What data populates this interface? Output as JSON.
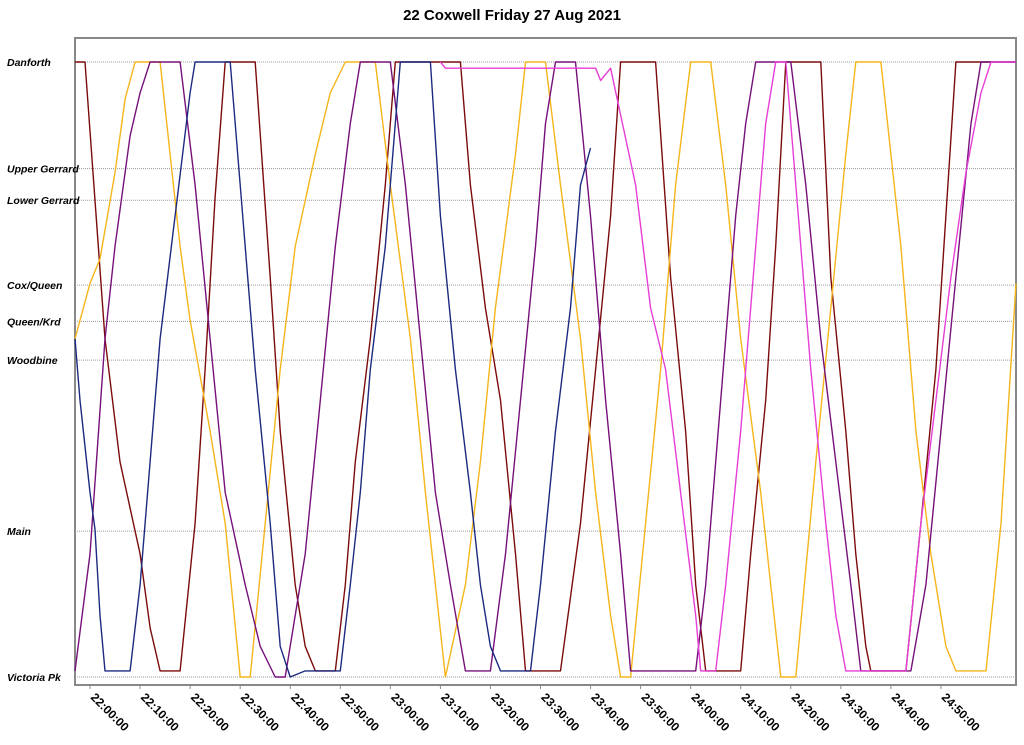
{
  "title": "22 Coxwell Friday 27 Aug 2021",
  "chart_data": {
    "type": "line",
    "title": "22 Coxwell Friday 27 Aug 2021",
    "xlabel": "",
    "ylabel": "",
    "x_range": [
      "21:57:00",
      "25:05:00"
    ],
    "x_ticks": [
      "22:00:00",
      "22:10:00",
      "22:20:00",
      "22:30:00",
      "22:40:00",
      "22:50:00",
      "23:00:00",
      "23:10:00",
      "23:20:00",
      "23:30:00",
      "23:40:00",
      "23:50:00",
      "24:00:00",
      "24:10:00",
      "24:20:00",
      "24:30:00",
      "24:40:00",
      "24:50:00"
    ],
    "stops": [
      {
        "name": "Danforth",
        "pos": 0.0
      },
      {
        "name": "Upper Gerrard",
        "pos": 0.1733
      },
      {
        "name": "Lower Gerrard",
        "pos": 0.2247
      },
      {
        "name": "Cox/Queen",
        "pos": 0.3628
      },
      {
        "name": "Queen/Krd",
        "pos": 0.4218
      },
      {
        "name": "Woodbine",
        "pos": 0.4847
      },
      {
        "name": "Main",
        "pos": 0.7628
      },
      {
        "name": "Victoria Pk",
        "pos": 1.0
      }
    ],
    "grid": true,
    "legend": "none",
    "series": [
      {
        "color": "#7b0b0b",
        "points": [
          [
            "21:57:00",
            0.0
          ],
          [
            "21:59:00",
            0.0
          ],
          [
            "22:03:00",
            0.45
          ],
          [
            "22:06:00",
            0.65
          ],
          [
            "22:10:00",
            0.8
          ],
          [
            "22:12:00",
            0.92
          ],
          [
            "22:14:00",
            0.99
          ],
          [
            "22:18:00",
            0.99
          ],
          [
            "22:21:00",
            0.75
          ],
          [
            "22:23:00",
            0.5
          ],
          [
            "22:25:00",
            0.22
          ],
          [
            "22:27:00",
            0.0
          ],
          [
            "22:33:00",
            0.0
          ],
          [
            "22:36:00",
            0.35
          ],
          [
            "22:38:00",
            0.6
          ],
          [
            "22:41:00",
            0.85
          ],
          [
            "22:43:00",
            0.95
          ],
          [
            "22:45:00",
            0.99
          ],
          [
            "22:49:00",
            0.99
          ],
          [
            "22:51:00",
            0.85
          ],
          [
            "22:53:00",
            0.65
          ],
          [
            "22:56:00",
            0.45
          ],
          [
            "22:59:00",
            0.2
          ],
          [
            "23:01:00",
            0.0
          ],
          [
            "23:14:00",
            0.0
          ],
          [
            "23:16:00",
            0.2
          ],
          [
            "23:19:00",
            0.4
          ],
          [
            "23:22:00",
            0.55
          ],
          [
            "23:25:00",
            0.8
          ],
          [
            "23:27:00",
            0.99
          ],
          [
            "23:34:00",
            0.99
          ],
          [
            "23:38:00",
            0.75
          ],
          [
            "23:41:00",
            0.5
          ],
          [
            "23:44:00",
            0.25
          ],
          [
            "23:46:00",
            0.0
          ],
          [
            "23:53:00",
            0.0
          ],
          [
            "23:56:00",
            0.35
          ],
          [
            "23:59:00",
            0.6
          ],
          [
            "24:01:00",
            0.85
          ],
          [
            "24:03:00",
            0.99
          ],
          [
            "24:10:00",
            0.99
          ],
          [
            "24:12:00",
            0.8
          ],
          [
            "24:15:00",
            0.55
          ],
          [
            "24:17:00",
            0.3
          ],
          [
            "24:19:00",
            0.0
          ],
          [
            "24:26:00",
            0.0
          ],
          [
            "24:28:00",
            0.35
          ],
          [
            "24:31:00",
            0.6
          ],
          [
            "24:33:00",
            0.8
          ],
          [
            "24:35:00",
            0.95
          ],
          [
            "24:36:00",
            0.99
          ],
          [
            "24:43:00",
            0.99
          ],
          [
            "24:46:00",
            0.75
          ],
          [
            "24:49:00",
            0.5
          ],
          [
            "24:51:00",
            0.25
          ],
          [
            "24:53:00",
            0.0
          ],
          [
            "25:05:00",
            0.0
          ]
        ]
      },
      {
        "color": "#f5b51b",
        "points": [
          [
            "21:57:00",
            0.45
          ],
          [
            "21:58:00",
            0.42
          ],
          [
            "22:00:00",
            0.36
          ],
          [
            "22:02:00",
            0.32
          ],
          [
            "22:05:00",
            0.18
          ],
          [
            "22:07:00",
            0.06
          ],
          [
            "22:09:00",
            0.0
          ],
          [
            "22:14:00",
            0.0
          ],
          [
            "22:16:00",
            0.15
          ],
          [
            "22:18:00",
            0.3
          ],
          [
            "22:20:00",
            0.42
          ],
          [
            "22:24:00",
            0.6
          ],
          [
            "22:27:00",
            0.75
          ],
          [
            "22:30:00",
            1.0
          ],
          [
            "22:32:00",
            1.0
          ],
          [
            "22:35:00",
            0.75
          ],
          [
            "22:38:00",
            0.5
          ],
          [
            "22:41:00",
            0.3
          ],
          [
            "22:45:00",
            0.15
          ],
          [
            "22:48:00",
            0.05
          ],
          [
            "22:51:00",
            0.0
          ],
          [
            "22:57:00",
            0.0
          ],
          [
            "23:00:00",
            0.2
          ],
          [
            "23:04:00",
            0.45
          ],
          [
            "23:07:00",
            0.7
          ],
          [
            "23:11:00",
            1.0
          ],
          [
            "23:15:00",
            0.85
          ],
          [
            "23:18:00",
            0.65
          ],
          [
            "23:21:00",
            0.4
          ],
          [
            "23:25:00",
            0.15
          ],
          [
            "23:27:00",
            0.0
          ],
          [
            "23:31:00",
            0.0
          ],
          [
            "23:34:00",
            0.2
          ],
          [
            "23:38:00",
            0.45
          ],
          [
            "23:41:00",
            0.7
          ],
          [
            "23:44:00",
            0.9
          ],
          [
            "23:46:00",
            1.0
          ],
          [
            "23:48:00",
            1.0
          ],
          [
            "23:51:00",
            0.75
          ],
          [
            "23:54:00",
            0.5
          ],
          [
            "23:57:00",
            0.2
          ],
          [
            "24:00:00",
            0.0
          ],
          [
            "24:04:00",
            0.0
          ],
          [
            "24:07:00",
            0.2
          ],
          [
            "24:10:00",
            0.45
          ],
          [
            "24:14:00",
            0.7
          ],
          [
            "24:16:00",
            0.85
          ],
          [
            "24:18:00",
            1.0
          ],
          [
            "24:21:00",
            1.0
          ],
          [
            "24:25:00",
            0.65
          ],
          [
            "24:28:00",
            0.4
          ],
          [
            "24:31:00",
            0.15
          ],
          [
            "24:33:00",
            0.0
          ],
          [
            "24:38:00",
            0.0
          ],
          [
            "24:42:00",
            0.3
          ],
          [
            "24:45:00",
            0.6
          ],
          [
            "24:48:00",
            0.8
          ],
          [
            "24:51:00",
            0.95
          ],
          [
            "24:53:00",
            0.99
          ],
          [
            "24:59:00",
            0.99
          ],
          [
            "25:02:00",
            0.75
          ],
          [
            "25:05:00",
            0.36
          ]
        ]
      },
      {
        "color": "#76107a",
        "points": [
          [
            "21:57:00",
            0.99
          ],
          [
            "22:00:00",
            0.8
          ],
          [
            "22:03:00",
            0.45
          ],
          [
            "22:05:00",
            0.3
          ],
          [
            "22:08:00",
            0.12
          ],
          [
            "22:10:00",
            0.05
          ],
          [
            "22:12:00",
            0.0
          ],
          [
            "22:18:00",
            0.0
          ],
          [
            "22:21:00",
            0.2
          ],
          [
            "22:24:00",
            0.45
          ],
          [
            "22:27:00",
            0.7
          ],
          [
            "22:31:00",
            0.85
          ],
          [
            "22:34:00",
            0.95
          ],
          [
            "22:37:00",
            1.0
          ],
          [
            "22:39:00",
            1.0
          ],
          [
            "22:43:00",
            0.8
          ],
          [
            "22:46:00",
            0.55
          ],
          [
            "22:49:00",
            0.3
          ],
          [
            "22:52:00",
            0.1
          ],
          [
            "22:54:00",
            0.0
          ],
          [
            "23:00:00",
            0.0
          ],
          [
            "23:03:00",
            0.2
          ],
          [
            "23:06:00",
            0.45
          ],
          [
            "23:09:00",
            0.7
          ],
          [
            "23:12:00",
            0.85
          ],
          [
            "23:15:00",
            0.99
          ],
          [
            "23:20:00",
            0.99
          ],
          [
            "23:23:00",
            0.8
          ],
          [
            "23:26:00",
            0.55
          ],
          [
            "23:29:00",
            0.3
          ],
          [
            "23:31:00",
            0.1
          ],
          [
            "23:33:00",
            0.0
          ],
          [
            "23:37:00",
            0.0
          ],
          [
            "23:40:00",
            0.25
          ],
          [
            "23:43:00",
            0.55
          ],
          [
            "23:46:00",
            0.8
          ],
          [
            "23:48:00",
            0.99
          ],
          [
            "24:01:00",
            0.99
          ],
          [
            "24:03:00",
            0.85
          ],
          [
            "24:05:00",
            0.65
          ],
          [
            "24:07:00",
            0.45
          ],
          [
            "24:09:00",
            0.25
          ],
          [
            "24:11:00",
            0.1
          ],
          [
            "24:13:00",
            0.0
          ],
          [
            "24:20:00",
            0.0
          ],
          [
            "24:23:00",
            0.2
          ],
          [
            "24:26:00",
            0.45
          ],
          [
            "24:29:00",
            0.65
          ],
          [
            "24:32:00",
            0.85
          ],
          [
            "24:34:00",
            0.99
          ],
          [
            "24:44:00",
            0.99
          ],
          [
            "24:47:00",
            0.85
          ],
          [
            "24:50:00",
            0.6
          ],
          [
            "24:53:00",
            0.35
          ],
          [
            "24:56:00",
            0.1
          ],
          [
            "24:58:00",
            0.0
          ],
          [
            "25:05:00",
            0.0
          ]
        ]
      },
      {
        "color": "#1c2a80",
        "points": [
          [
            "21:57:00",
            0.45
          ],
          [
            "21:58:00",
            0.55
          ],
          [
            "22:00:00",
            0.7
          ],
          [
            "22:01:00",
            0.76
          ],
          [
            "22:02:00",
            0.9
          ],
          [
            "22:03:00",
            0.99
          ],
          [
            "22:08:00",
            0.99
          ],
          [
            "22:10:00",
            0.85
          ],
          [
            "22:12:00",
            0.65
          ],
          [
            "22:14:00",
            0.45
          ],
          [
            "22:17:00",
            0.25
          ],
          [
            "22:20:00",
            0.05
          ],
          [
            "22:21:00",
            0.0
          ],
          [
            "22:28:00",
            0.0
          ],
          [
            "22:30:00",
            0.2
          ],
          [
            "22:33:00",
            0.5
          ],
          [
            "22:36:00",
            0.75
          ],
          [
            "22:38:00",
            0.95
          ],
          [
            "22:40:00",
            1.0
          ],
          [
            "22:43:00",
            0.99
          ],
          [
            "22:50:00",
            0.99
          ],
          [
            "22:52:00",
            0.85
          ],
          [
            "22:54:00",
            0.7
          ],
          [
            "22:56:00",
            0.5
          ],
          [
            "22:59:00",
            0.3
          ],
          [
            "23:01:00",
            0.1
          ],
          [
            "23:02:00",
            0.0
          ],
          [
            "23:08:00",
            0.0
          ],
          [
            "23:10:00",
            0.25
          ],
          [
            "23:13:00",
            0.5
          ],
          [
            "23:16:00",
            0.7
          ],
          [
            "23:18:00",
            0.85
          ],
          [
            "23:20:00",
            0.95
          ],
          [
            "23:22:00",
            0.99
          ],
          [
            "23:28:00",
            0.99
          ],
          [
            "23:30:00",
            0.85
          ],
          [
            "23:33:00",
            0.6
          ],
          [
            "23:36:00",
            0.4
          ],
          [
            "23:38:00",
            0.2
          ],
          [
            "23:40:00",
            0.14
          ]
        ]
      },
      {
        "color": "#e63fd6",
        "points": [
          [
            "23:10:00",
            0.0
          ],
          [
            "23:11:00",
            0.01
          ],
          [
            "23:19:00",
            0.01
          ],
          [
            "23:26:00",
            0.01
          ],
          [
            "23:35:00",
            0.01
          ],
          [
            "23:41:00",
            0.01
          ],
          [
            "23:42:00",
            0.03
          ],
          [
            "23:44:00",
            0.01
          ],
          [
            "23:49:00",
            0.2
          ],
          [
            "23:52:00",
            0.4
          ],
          [
            "23:55:00",
            0.5
          ],
          [
            "23:58:00",
            0.7
          ],
          [
            "24:01:00",
            0.9
          ],
          [
            "24:02:00",
            0.99
          ],
          [
            "24:05:00",
            0.99
          ],
          [
            "24:07:00",
            0.85
          ],
          [
            "24:10:00",
            0.6
          ],
          [
            "24:13:00",
            0.3
          ],
          [
            "24:15:00",
            0.1
          ],
          [
            "24:17:00",
            0.0
          ],
          [
            "24:19:00",
            0.0
          ],
          [
            "24:21:00",
            0.2
          ],
          [
            "24:24:00",
            0.5
          ],
          [
            "24:27:00",
            0.75
          ],
          [
            "24:29:00",
            0.9
          ],
          [
            "24:31:00",
            0.99
          ],
          [
            "24:43:00",
            0.99
          ],
          [
            "24:46:00",
            0.75
          ],
          [
            "24:49:00",
            0.55
          ],
          [
            "24:52:00",
            0.35
          ],
          [
            "24:55:00",
            0.18
          ],
          [
            "24:58:00",
            0.05
          ],
          [
            "25:00:00",
            0.0
          ],
          [
            "25:04:00",
            0.0
          ],
          [
            "25:05:00",
            0.0
          ]
        ]
      }
    ]
  }
}
